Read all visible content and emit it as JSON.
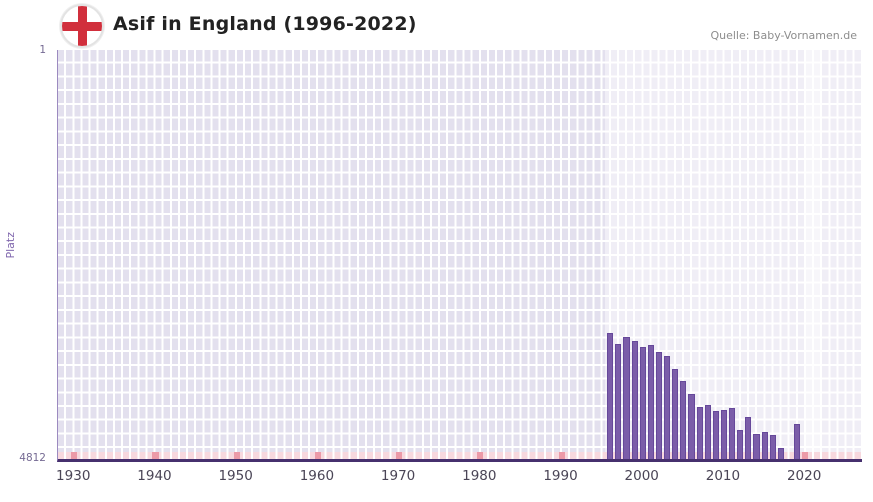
{
  "header": {
    "title": "Asif in England (1996-2022)",
    "source": "Quelle: Baby-Vornamen.de"
  },
  "flag": {
    "meaning": "england-flag",
    "cross_color": "#d12f3c"
  },
  "axes": {
    "y_label": "Platz",
    "y_top": "1",
    "y_bottom": "4812",
    "x_ticks": [
      "1930",
      "1940",
      "1950",
      "1960",
      "1970",
      "1980",
      "1990",
      "2000",
      "2010",
      "2020"
    ]
  },
  "chart_data": {
    "type": "bar",
    "title": "Asif in England (1996-2022)",
    "xlabel": "",
    "ylabel": "Platz",
    "y_axis": {
      "inverted": true,
      "min": 1,
      "max": 4812
    },
    "x_range": [
      1928,
      2027
    ],
    "grid": true,
    "bar_color": "#7b5da9",
    "no_data_strip_color": "#f7d8de",
    "decade_marker_color": "#ec9aa8",
    "highlight_band_from": 1995.3,
    "recent_band": [
      2019.8,
      2021.8
    ],
    "years": [
      1996,
      1997,
      1998,
      1999,
      2000,
      2001,
      2002,
      2003,
      2004,
      2005,
      2006,
      2007,
      2008,
      2009,
      2010,
      2011,
      2012,
      2013,
      2014,
      2015,
      2016,
      2017,
      2018,
      2019,
      2020,
      2021,
      2022
    ],
    "ranks": [
      3330,
      3460,
      3380,
      3420,
      3500,
      3470,
      3550,
      3600,
      3750,
      3900,
      4050,
      4200,
      4180,
      4250,
      4230,
      4210,
      4470,
      4320,
      4520,
      4500,
      4530,
      4680,
      null,
      4400,
      null,
      null,
      null
    ]
  }
}
